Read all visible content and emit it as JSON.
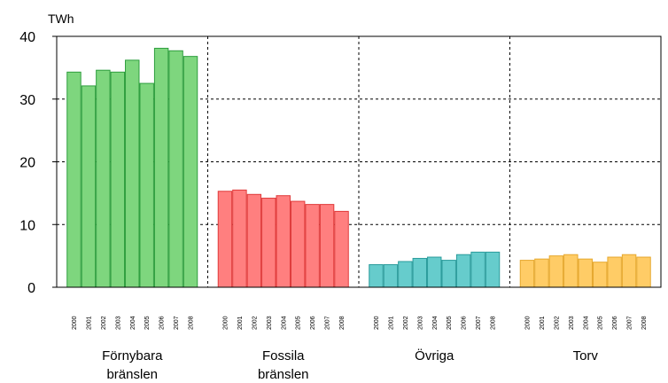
{
  "chart_data": {
    "type": "bar",
    "unit": "TWh",
    "ylim": [
      0,
      40
    ],
    "yticks": [
      0,
      10,
      20,
      30,
      40
    ],
    "grid": "dashed",
    "years": [
      "2000",
      "2001",
      "2002",
      "2003",
      "2004",
      "2005",
      "2006",
      "2007",
      "2008"
    ],
    "groups": [
      {
        "label_lines": [
          "Förnybara",
          "bränslen"
        ],
        "fill": "#7ed67e",
        "stroke": "#2e9e3e",
        "values": [
          34.3,
          32.1,
          34.6,
          34.3,
          36.2,
          32.5,
          38.1,
          37.7,
          36.8
        ]
      },
      {
        "label_lines": [
          "Fossila",
          "bränslen"
        ],
        "fill": "#ff7f7f",
        "stroke": "#e03a3a",
        "values": [
          15.3,
          15.5,
          14.8,
          14.2,
          14.6,
          13.7,
          13.2,
          13.2,
          12.1
        ]
      },
      {
        "label_lines": [
          "Övriga"
        ],
        "fill": "#66cccc",
        "stroke": "#2a9b9b",
        "values": [
          3.6,
          3.6,
          4.1,
          4.6,
          4.8,
          4.3,
          5.2,
          5.6,
          5.6
        ]
      },
      {
        "label_lines": [
          "Torv"
        ],
        "fill": "#ffcc66",
        "stroke": "#e6a82e",
        "values": [
          4.3,
          4.5,
          5.0,
          5.2,
          4.5,
          4.0,
          4.8,
          5.2,
          4.8
        ]
      }
    ]
  }
}
